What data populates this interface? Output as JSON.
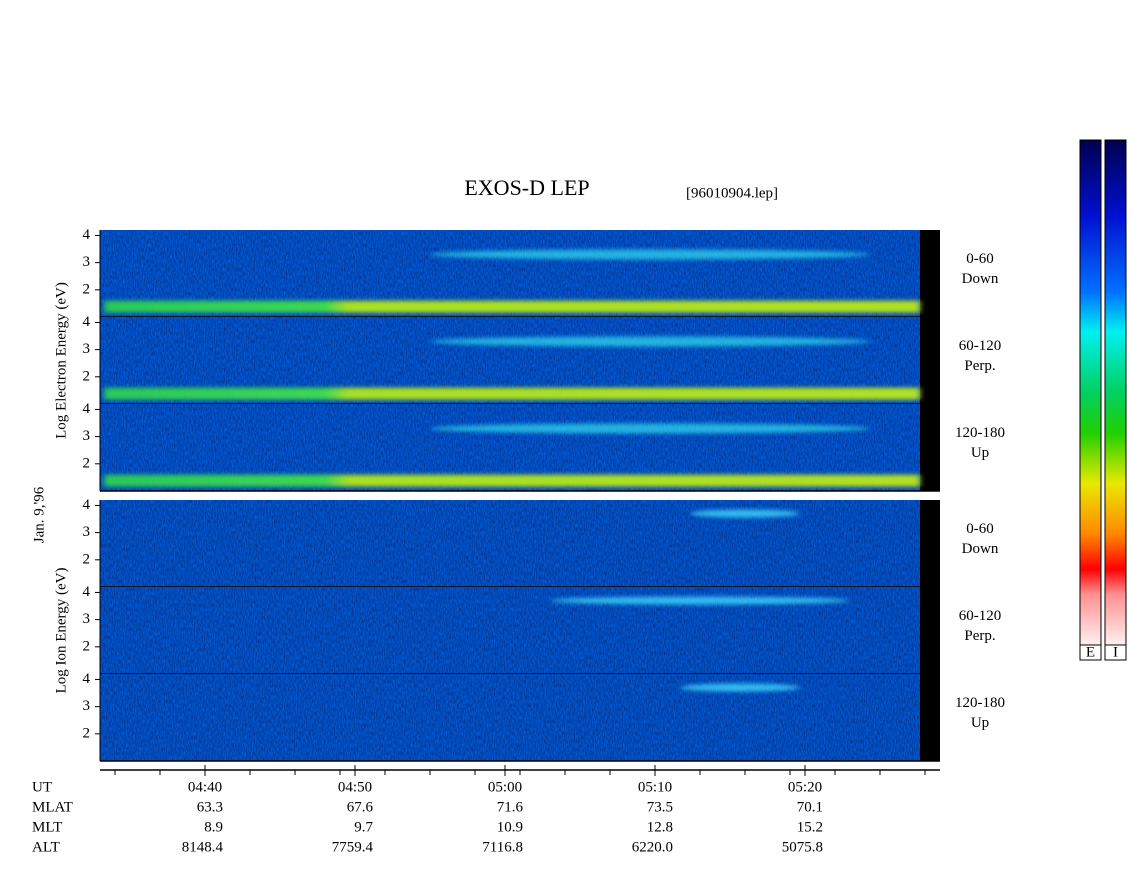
{
  "chart_data": {
    "type": "spectrogram",
    "title": "EXOS-D LEP",
    "file_label": "[96010904.lep]",
    "date_label": "Jan. 9,'96",
    "panels": [
      {
        "ylabel": "Log Electron Energy (eV)",
        "subpanels": [
          {
            "angle": "0-60",
            "direction": "Down"
          },
          {
            "angle": "60-120",
            "direction": "Perp."
          },
          {
            "angle": "120-180",
            "direction": "Up"
          }
        ]
      },
      {
        "ylabel": "Log Ion Energy (eV)",
        "subpanels": [
          {
            "angle": "0-60",
            "direction": "Down"
          },
          {
            "angle": "60-120",
            "direction": "Perp."
          },
          {
            "angle": "120-180",
            "direction": "Up"
          }
        ]
      }
    ],
    "ylim": [
      1,
      4.2
    ],
    "yticks": [
      2,
      3,
      4
    ],
    "x_label": "UT",
    "categories": [
      "04:40",
      "04:50",
      "05:00",
      "05:10",
      "05:20"
    ],
    "rows": [
      {
        "name": "MLAT",
        "values": [
          63.3,
          67.6,
          71.6,
          73.5,
          70.1
        ]
      },
      {
        "name": "MLT",
        "values": [
          8.9,
          9.7,
          10.9,
          12.8,
          15.2
        ]
      },
      {
        "name": "ALT",
        "values": [
          8148.4,
          7759.4,
          7116.8,
          6220.0,
          5075.8
        ],
        "value_labels": [
          "8148.4",
          "7759.4",
          "7116.8",
          "6220.0",
          "5075.8"
        ]
      }
    ],
    "colorbars": [
      "E",
      "I"
    ]
  }
}
